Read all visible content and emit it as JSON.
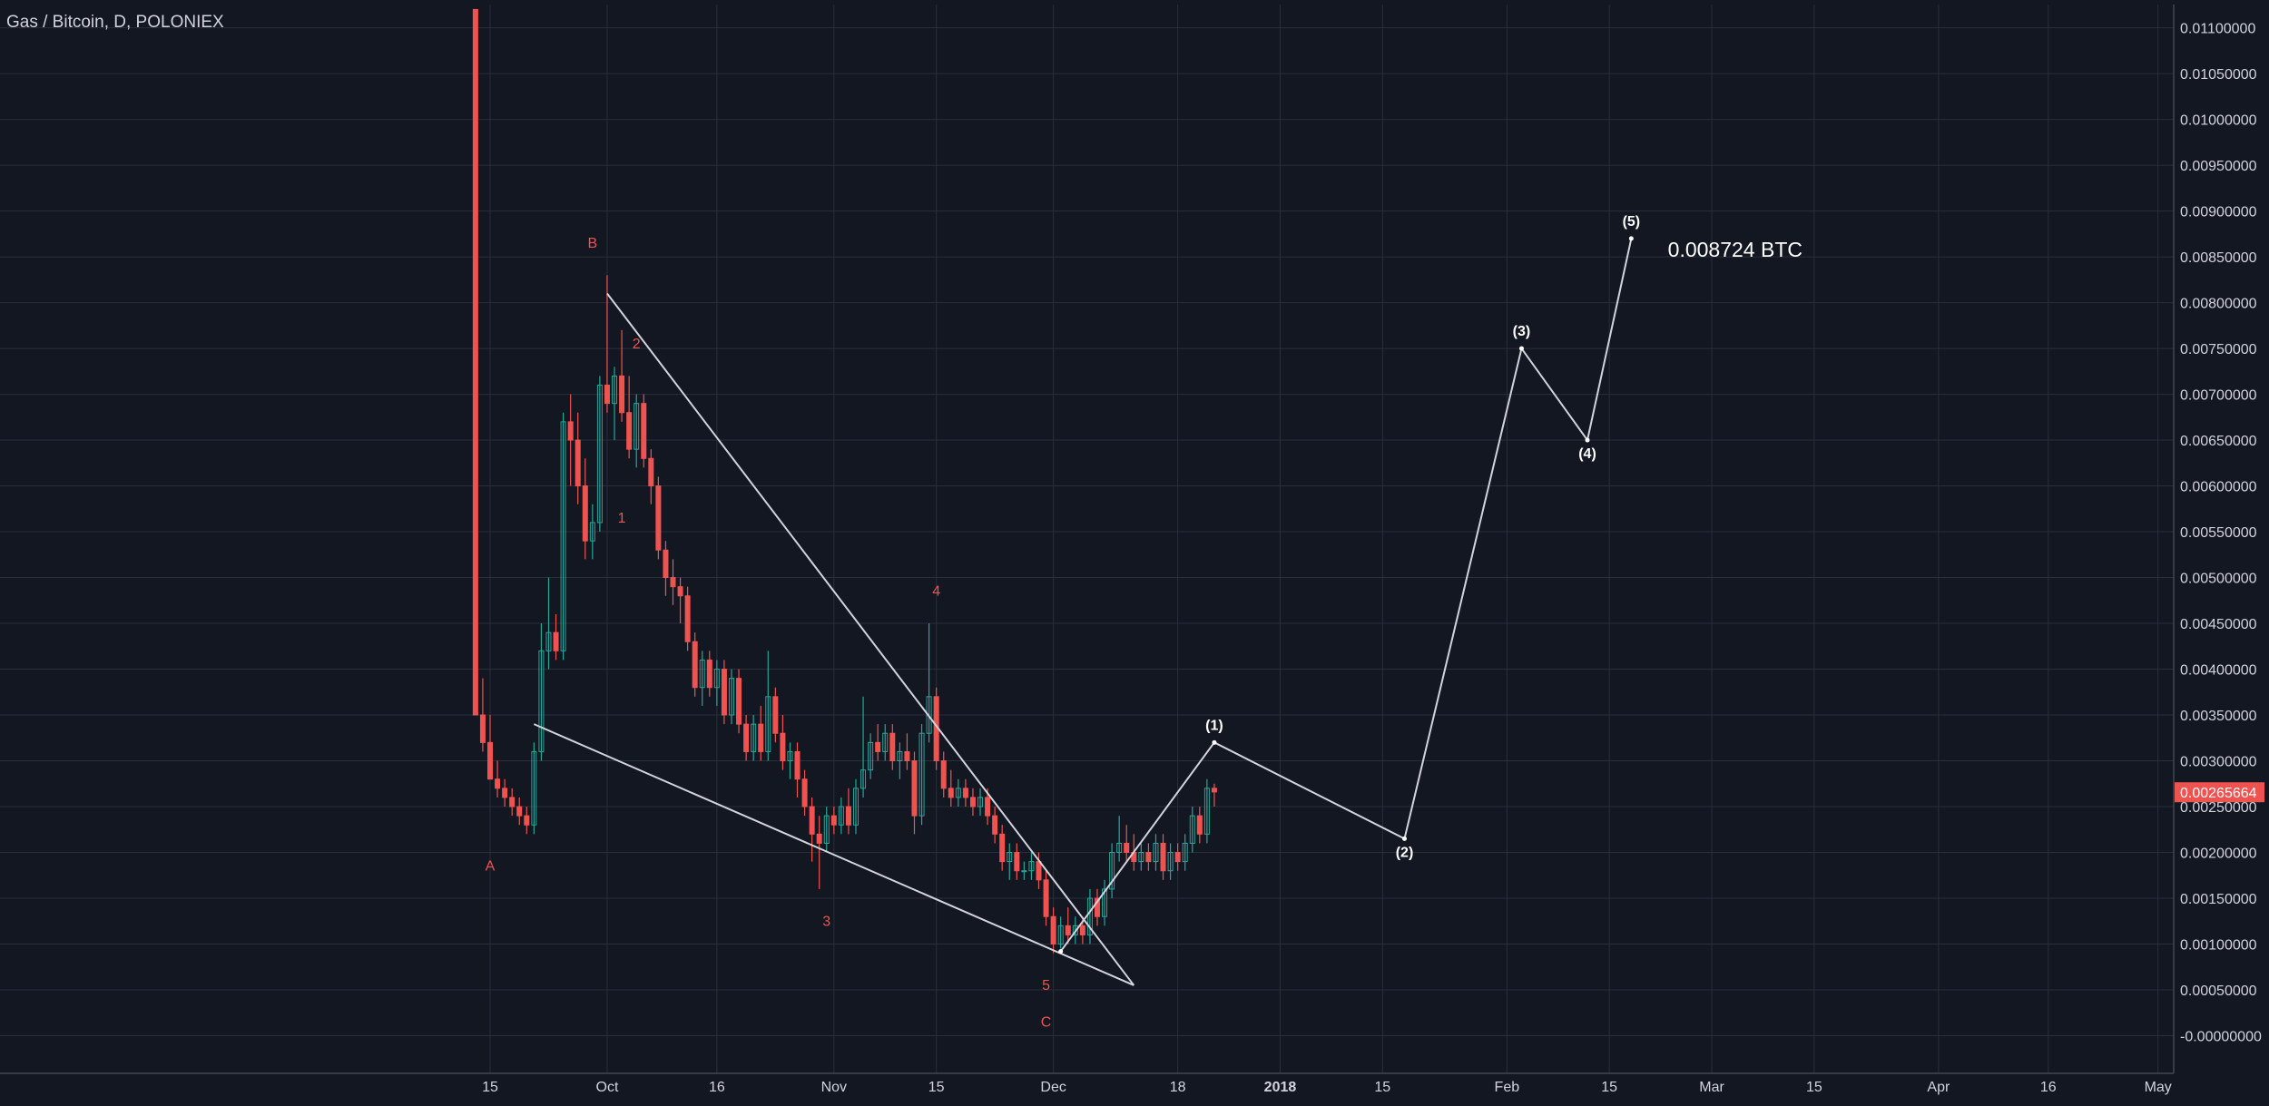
{
  "header": {
    "symbol_title": "Gas / Bitcoin, D, POLONIEX"
  },
  "colors": {
    "background": "#131722",
    "grid": "#2a2e39",
    "up": "#26a69a",
    "down": "#ef5350",
    "wave_label": "#ef5350",
    "projection": "#d1d4dc",
    "axis_text": "#d1d4dc",
    "price_tag": "#ef5350"
  },
  "chart_data": {
    "type": "candlestick",
    "ylim": [
      -0.0005,
      0.0112
    ],
    "y_ticks": [
      "0.01100000",
      "0.01050000",
      "0.01000000",
      "0.00950000",
      "0.00900000",
      "0.00850000",
      "0.00800000",
      "0.00750000",
      "0.00700000",
      "0.00650000",
      "0.00600000",
      "0.00550000",
      "0.00500000",
      "0.00450000",
      "0.00400000",
      "0.00350000",
      "0.00300000",
      "0.00250000",
      "0.00200000",
      "0.00150000",
      "0.00100000",
      "0.00050000",
      "-0.00000000"
    ],
    "y_tick_values": [
      0.011,
      0.0105,
      0.01,
      0.0095,
      0.009,
      0.0085,
      0.008,
      0.0075,
      0.007,
      0.0065,
      0.006,
      0.0055,
      0.005,
      0.0045,
      0.004,
      0.0035,
      0.003,
      0.0025,
      0.002,
      0.0015,
      0.001,
      0.0005,
      0.0
    ],
    "x_ticks": [
      {
        "label": "15",
        "date": "2017-09-15"
      },
      {
        "label": "Oct",
        "date": "2017-10-01"
      },
      {
        "label": "16",
        "date": "2017-10-16"
      },
      {
        "label": "Nov",
        "date": "2017-11-01"
      },
      {
        "label": "15",
        "date": "2017-11-15"
      },
      {
        "label": "Dec",
        "date": "2017-12-01"
      },
      {
        "label": "18",
        "date": "2017-12-18"
      },
      {
        "label": "2018",
        "date": "2018-01-01"
      },
      {
        "label": "15",
        "date": "2018-01-15"
      },
      {
        "label": "Feb",
        "date": "2018-02-01"
      },
      {
        "label": "15",
        "date": "2018-02-15"
      },
      {
        "label": "Mar",
        "date": "2018-03-01"
      },
      {
        "label": "15",
        "date": "2018-03-15"
      },
      {
        "label": "Apr",
        "date": "2018-04-01"
      },
      {
        "label": "16",
        "date": "2018-04-16"
      },
      {
        "label": "May",
        "date": "2018-05-01"
      }
    ],
    "last_price": "0.00265664",
    "last_price_value": 0.00265664,
    "candles": [
      {
        "date": "2017-09-13",
        "o": 0.0112,
        "h": 0.0112,
        "l": 0.0035,
        "c": 0.0035
      },
      {
        "date": "2017-09-14",
        "o": 0.0035,
        "h": 0.0039,
        "l": 0.0031,
        "c": 0.0032
      },
      {
        "date": "2017-09-15",
        "o": 0.0032,
        "h": 0.0035,
        "l": 0.0028,
        "c": 0.0028
      },
      {
        "date": "2017-09-16",
        "o": 0.0028,
        "h": 0.003,
        "l": 0.0026,
        "c": 0.0027
      },
      {
        "date": "2017-09-17",
        "o": 0.0027,
        "h": 0.0028,
        "l": 0.0025,
        "c": 0.0026
      },
      {
        "date": "2017-09-18",
        "o": 0.0026,
        "h": 0.0027,
        "l": 0.0024,
        "c": 0.0025
      },
      {
        "date": "2017-09-19",
        "o": 0.0025,
        "h": 0.0026,
        "l": 0.0023,
        "c": 0.0024
      },
      {
        "date": "2017-09-20",
        "o": 0.0024,
        "h": 0.0025,
        "l": 0.0022,
        "c": 0.0023
      },
      {
        "date": "2017-09-21",
        "o": 0.0023,
        "h": 0.0032,
        "l": 0.0022,
        "c": 0.0031
      },
      {
        "date": "2017-09-22",
        "o": 0.0031,
        "h": 0.0045,
        "l": 0.003,
        "c": 0.0042
      },
      {
        "date": "2017-09-23",
        "o": 0.0042,
        "h": 0.005,
        "l": 0.004,
        "c": 0.0044
      },
      {
        "date": "2017-09-24",
        "o": 0.0044,
        "h": 0.0046,
        "l": 0.0041,
        "c": 0.0042
      },
      {
        "date": "2017-09-25",
        "o": 0.0042,
        "h": 0.0068,
        "l": 0.0041,
        "c": 0.0067
      },
      {
        "date": "2017-09-26",
        "o": 0.0067,
        "h": 0.007,
        "l": 0.006,
        "c": 0.0065
      },
      {
        "date": "2017-09-27",
        "o": 0.0065,
        "h": 0.0068,
        "l": 0.0058,
        "c": 0.006
      },
      {
        "date": "2017-09-28",
        "o": 0.006,
        "h": 0.0063,
        "l": 0.0052,
        "c": 0.0054
      },
      {
        "date": "2017-09-29",
        "o": 0.0054,
        "h": 0.0058,
        "l": 0.0052,
        "c": 0.0056
      },
      {
        "date": "2017-09-30",
        "o": 0.0056,
        "h": 0.0072,
        "l": 0.0055,
        "c": 0.0071
      },
      {
        "date": "2017-10-01",
        "o": 0.0071,
        "h": 0.0083,
        "l": 0.0068,
        "c": 0.0069
      },
      {
        "date": "2017-10-02",
        "o": 0.0069,
        "h": 0.0073,
        "l": 0.0065,
        "c": 0.0072
      },
      {
        "date": "2017-10-03",
        "o": 0.0072,
        "h": 0.0077,
        "l": 0.0067,
        "c": 0.0068
      },
      {
        "date": "2017-10-04",
        "o": 0.0068,
        "h": 0.0072,
        "l": 0.0063,
        "c": 0.0064
      },
      {
        "date": "2017-10-05",
        "o": 0.0064,
        "h": 0.007,
        "l": 0.0062,
        "c": 0.0069
      },
      {
        "date": "2017-10-06",
        "o": 0.0069,
        "h": 0.007,
        "l": 0.0062,
        "c": 0.0063
      },
      {
        "date": "2017-10-07",
        "o": 0.0063,
        "h": 0.0064,
        "l": 0.0058,
        "c": 0.006
      },
      {
        "date": "2017-10-08",
        "o": 0.006,
        "h": 0.0061,
        "l": 0.0052,
        "c": 0.0053
      },
      {
        "date": "2017-10-09",
        "o": 0.0053,
        "h": 0.0054,
        "l": 0.0048,
        "c": 0.005
      },
      {
        "date": "2017-10-10",
        "o": 0.005,
        "h": 0.0052,
        "l": 0.0047,
        "c": 0.0049
      },
      {
        "date": "2017-10-11",
        "o": 0.0049,
        "h": 0.005,
        "l": 0.0045,
        "c": 0.0048
      },
      {
        "date": "2017-10-12",
        "o": 0.0048,
        "h": 0.0049,
        "l": 0.0042,
        "c": 0.0043
      },
      {
        "date": "2017-10-13",
        "o": 0.0043,
        "h": 0.0044,
        "l": 0.0037,
        "c": 0.0038
      },
      {
        "date": "2017-10-14",
        "o": 0.0038,
        "h": 0.0042,
        "l": 0.0036,
        "c": 0.0041
      },
      {
        "date": "2017-10-15",
        "o": 0.0041,
        "h": 0.0042,
        "l": 0.0037,
        "c": 0.0038
      },
      {
        "date": "2017-10-16",
        "o": 0.0038,
        "h": 0.0041,
        "l": 0.0036,
        "c": 0.004
      },
      {
        "date": "2017-10-17",
        "o": 0.004,
        "h": 0.0041,
        "l": 0.0034,
        "c": 0.0035
      },
      {
        "date": "2017-10-18",
        "o": 0.0035,
        "h": 0.004,
        "l": 0.0034,
        "c": 0.0039
      },
      {
        "date": "2017-10-19",
        "o": 0.0039,
        "h": 0.004,
        "l": 0.0033,
        "c": 0.0034
      },
      {
        "date": "2017-10-20",
        "o": 0.0034,
        "h": 0.0035,
        "l": 0.003,
        "c": 0.0031
      },
      {
        "date": "2017-10-21",
        "o": 0.0031,
        "h": 0.0035,
        "l": 0.003,
        "c": 0.0034
      },
      {
        "date": "2017-10-22",
        "o": 0.0034,
        "h": 0.0036,
        "l": 0.003,
        "c": 0.0031
      },
      {
        "date": "2017-10-23",
        "o": 0.0031,
        "h": 0.0042,
        "l": 0.003,
        "c": 0.0037
      },
      {
        "date": "2017-10-24",
        "o": 0.0037,
        "h": 0.0038,
        "l": 0.0032,
        "c": 0.0033
      },
      {
        "date": "2017-10-25",
        "o": 0.0033,
        "h": 0.0035,
        "l": 0.0029,
        "c": 0.003
      },
      {
        "date": "2017-10-26",
        "o": 0.003,
        "h": 0.0032,
        "l": 0.0028,
        "c": 0.0031
      },
      {
        "date": "2017-10-27",
        "o": 0.0031,
        "h": 0.0032,
        "l": 0.0026,
        "c": 0.0028
      },
      {
        "date": "2017-10-28",
        "o": 0.0028,
        "h": 0.0029,
        "l": 0.0024,
        "c": 0.0025
      },
      {
        "date": "2017-10-29",
        "o": 0.0025,
        "h": 0.0026,
        "l": 0.0019,
        "c": 0.0022
      },
      {
        "date": "2017-10-30",
        "o": 0.0022,
        "h": 0.0024,
        "l": 0.0016,
        "c": 0.0021
      },
      {
        "date": "2017-10-31",
        "o": 0.0021,
        "h": 0.0025,
        "l": 0.002,
        "c": 0.0024
      },
      {
        "date": "2017-11-01",
        "o": 0.0024,
        "h": 0.0025,
        "l": 0.0022,
        "c": 0.0023
      },
      {
        "date": "2017-11-02",
        "o": 0.0023,
        "h": 0.0026,
        "l": 0.0022,
        "c": 0.0025
      },
      {
        "date": "2017-11-03",
        "o": 0.0025,
        "h": 0.0027,
        "l": 0.0022,
        "c": 0.0023
      },
      {
        "date": "2017-11-04",
        "o": 0.0023,
        "h": 0.0028,
        "l": 0.0022,
        "c": 0.0027
      },
      {
        "date": "2017-11-05",
        "o": 0.0027,
        "h": 0.0037,
        "l": 0.0026,
        "c": 0.0029
      },
      {
        "date": "2017-11-06",
        "o": 0.0029,
        "h": 0.0033,
        "l": 0.0028,
        "c": 0.0032
      },
      {
        "date": "2017-11-07",
        "o": 0.0032,
        "h": 0.0034,
        "l": 0.003,
        "c": 0.0031
      },
      {
        "date": "2017-11-08",
        "o": 0.0031,
        "h": 0.0034,
        "l": 0.003,
        "c": 0.0033
      },
      {
        "date": "2017-11-09",
        "o": 0.0033,
        "h": 0.0034,
        "l": 0.0029,
        "c": 0.003
      },
      {
        "date": "2017-11-10",
        "o": 0.003,
        "h": 0.0032,
        "l": 0.0028,
        "c": 0.0031
      },
      {
        "date": "2017-11-11",
        "o": 0.0031,
        "h": 0.0033,
        "l": 0.0029,
        "c": 0.003
      },
      {
        "date": "2017-11-12",
        "o": 0.003,
        "h": 0.0031,
        "l": 0.0022,
        "c": 0.0024
      },
      {
        "date": "2017-11-13",
        "o": 0.0024,
        "h": 0.0034,
        "l": 0.0023,
        "c": 0.0033
      },
      {
        "date": "2017-11-14",
        "o": 0.0033,
        "h": 0.0045,
        "l": 0.0032,
        "c": 0.0037
      },
      {
        "date": "2017-11-15",
        "o": 0.0037,
        "h": 0.0038,
        "l": 0.0029,
        "c": 0.003
      },
      {
        "date": "2017-11-16",
        "o": 0.003,
        "h": 0.0031,
        "l": 0.0026,
        "c": 0.0027
      },
      {
        "date": "2017-11-17",
        "o": 0.0027,
        "h": 0.0029,
        "l": 0.0025,
        "c": 0.0026
      },
      {
        "date": "2017-11-18",
        "o": 0.0026,
        "h": 0.0028,
        "l": 0.0025,
        "c": 0.0027
      },
      {
        "date": "2017-11-19",
        "o": 0.0027,
        "h": 0.0028,
        "l": 0.0025,
        "c": 0.0026
      },
      {
        "date": "2017-11-20",
        "o": 0.0026,
        "h": 0.0027,
        "l": 0.0024,
        "c": 0.0025
      },
      {
        "date": "2017-11-21",
        "o": 0.0025,
        "h": 0.0027,
        "l": 0.0024,
        "c": 0.0026
      },
      {
        "date": "2017-11-22",
        "o": 0.0026,
        "h": 0.0027,
        "l": 0.0023,
        "c": 0.0024
      },
      {
        "date": "2017-11-23",
        "o": 0.0024,
        "h": 0.0025,
        "l": 0.0021,
        "c": 0.0022
      },
      {
        "date": "2017-11-24",
        "o": 0.0022,
        "h": 0.0023,
        "l": 0.0018,
        "c": 0.0019
      },
      {
        "date": "2017-11-25",
        "o": 0.0019,
        "h": 0.0021,
        "l": 0.0017,
        "c": 0.002
      },
      {
        "date": "2017-11-26",
        "o": 0.002,
        "h": 0.0021,
        "l": 0.0017,
        "c": 0.0018
      },
      {
        "date": "2017-11-27",
        "o": 0.0018,
        "h": 0.0019,
        "l": 0.0017,
        "c": 0.0018
      },
      {
        "date": "2017-11-28",
        "o": 0.0018,
        "h": 0.002,
        "l": 0.0017,
        "c": 0.0019
      },
      {
        "date": "2017-11-29",
        "o": 0.0019,
        "h": 0.002,
        "l": 0.0016,
        "c": 0.0017
      },
      {
        "date": "2017-11-30",
        "o": 0.0017,
        "h": 0.0018,
        "l": 0.0012,
        "c": 0.0013
      },
      {
        "date": "2017-12-01",
        "o": 0.0013,
        "h": 0.0014,
        "l": 0.0009,
        "c": 0.001
      },
      {
        "date": "2017-12-02",
        "o": 0.001,
        "h": 0.0013,
        "l": 0.00095,
        "c": 0.0012
      },
      {
        "date": "2017-12-03",
        "o": 0.0012,
        "h": 0.0014,
        "l": 0.001,
        "c": 0.0011
      },
      {
        "date": "2017-12-04",
        "o": 0.0011,
        "h": 0.0013,
        "l": 0.001,
        "c": 0.0012
      },
      {
        "date": "2017-12-05",
        "o": 0.0012,
        "h": 0.0013,
        "l": 0.001,
        "c": 0.0011
      },
      {
        "date": "2017-12-06",
        "o": 0.0011,
        "h": 0.0016,
        "l": 0.001,
        "c": 0.0015
      },
      {
        "date": "2017-12-07",
        "o": 0.0015,
        "h": 0.0016,
        "l": 0.0012,
        "c": 0.0013
      },
      {
        "date": "2017-12-08",
        "o": 0.0013,
        "h": 0.0017,
        "l": 0.0012,
        "c": 0.0016
      },
      {
        "date": "2017-12-09",
        "o": 0.0016,
        "h": 0.0021,
        "l": 0.0015,
        "c": 0.002
      },
      {
        "date": "2017-12-10",
        "o": 0.002,
        "h": 0.0024,
        "l": 0.0019,
        "c": 0.0021
      },
      {
        "date": "2017-12-11",
        "o": 0.0021,
        "h": 0.0023,
        "l": 0.0019,
        "c": 0.002
      },
      {
        "date": "2017-12-12",
        "o": 0.002,
        "h": 0.0022,
        "l": 0.0018,
        "c": 0.0019
      },
      {
        "date": "2017-12-13",
        "o": 0.0019,
        "h": 0.0021,
        "l": 0.0018,
        "c": 0.002
      },
      {
        "date": "2017-12-14",
        "o": 0.002,
        "h": 0.0021,
        "l": 0.0018,
        "c": 0.0019
      },
      {
        "date": "2017-12-15",
        "o": 0.0019,
        "h": 0.0022,
        "l": 0.0018,
        "c": 0.0021
      },
      {
        "date": "2017-12-16",
        "o": 0.0021,
        "h": 0.0022,
        "l": 0.0017,
        "c": 0.0018
      },
      {
        "date": "2017-12-17",
        "o": 0.0018,
        "h": 0.0021,
        "l": 0.0017,
        "c": 0.002
      },
      {
        "date": "2017-12-18",
        "o": 0.002,
        "h": 0.0021,
        "l": 0.0018,
        "c": 0.0019
      },
      {
        "date": "2017-12-19",
        "o": 0.0019,
        "h": 0.0022,
        "l": 0.0018,
        "c": 0.0021
      },
      {
        "date": "2017-12-20",
        "o": 0.0021,
        "h": 0.0025,
        "l": 0.002,
        "c": 0.0024
      },
      {
        "date": "2017-12-21",
        "o": 0.0024,
        "h": 0.0025,
        "l": 0.0021,
        "c": 0.0022
      },
      {
        "date": "2017-12-22",
        "o": 0.0022,
        "h": 0.0028,
        "l": 0.0021,
        "c": 0.0027
      },
      {
        "date": "2017-12-23",
        "o": 0.0027,
        "h": 0.00275,
        "l": 0.0025,
        "c": 0.00266
      }
    ],
    "annotations": [
      {
        "label": "A",
        "date": "2017-09-15",
        "price": 0.0018
      },
      {
        "label": "B",
        "date": "2017-09-29",
        "price": 0.0086
      },
      {
        "label": "1",
        "date": "2017-10-03",
        "price": 0.0056
      },
      {
        "label": "2",
        "date": "2017-10-05",
        "price": 0.0075
      },
      {
        "label": "3",
        "date": "2017-10-31",
        "price": 0.0012
      },
      {
        "label": "4",
        "date": "2017-11-15",
        "price": 0.0048
      },
      {
        "label": "5",
        "date": "2017-11-30",
        "price": 0.0005
      },
      {
        "label": "C",
        "date": "2017-11-30",
        "price": 0.0001
      }
    ],
    "trendlines": [
      {
        "from": {
          "date": "2017-10-01",
          "price": 0.0081
        },
        "to": {
          "date": "2017-12-12",
          "price": 0.00055
        }
      },
      {
        "from": {
          "date": "2017-09-21",
          "price": 0.0034
        },
        "to": {
          "date": "2017-12-12",
          "price": 0.00055
        }
      }
    ],
    "projection": {
      "points": [
        {
          "date": "2017-12-02",
          "price": 0.00092
        },
        {
          "date": "2017-12-23",
          "price": 0.0032
        },
        {
          "date": "2018-01-18",
          "price": 0.00215
        },
        {
          "date": "2018-02-03",
          "price": 0.0075
        },
        {
          "date": "2018-02-12",
          "price": 0.0065
        },
        {
          "date": "2018-02-18",
          "price": 0.0087
        }
      ],
      "labels": [
        {
          "label": "(1)",
          "date": "2017-12-23",
          "price": 0.0032
        },
        {
          "label": "(2)",
          "date": "2018-01-18",
          "price": 0.00215
        },
        {
          "label": "(3)",
          "date": "2018-02-03",
          "price": 0.0075
        },
        {
          "label": "(4)",
          "date": "2018-02-12",
          "price": 0.0065
        },
        {
          "label": "(5)",
          "date": "2018-02-18",
          "price": 0.0087
        }
      ]
    },
    "target_note": "0.008724 BTC",
    "target_note_anchor": {
      "date": "2018-02-23",
      "price": 0.0086
    }
  }
}
